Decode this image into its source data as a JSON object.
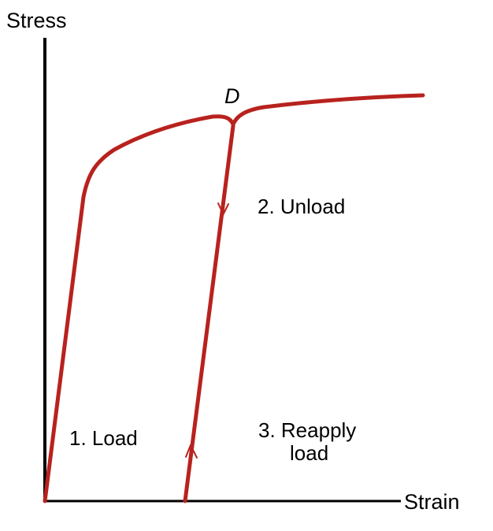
{
  "axes": {
    "y_label": "Stress",
    "x_label": "Strain"
  },
  "labels": {
    "point": "D",
    "load": "1. Load",
    "unload": "2. Unload",
    "reapply_line1": "3. Reapply",
    "reapply_line2": "load"
  },
  "colors": {
    "curve": "#b8221e",
    "axis": "#000000"
  }
}
